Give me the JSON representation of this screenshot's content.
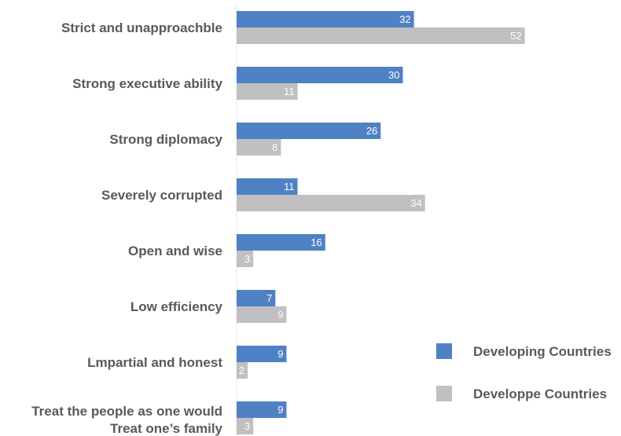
{
  "chart_data": {
    "type": "bar",
    "orientation": "horizontal",
    "categories": [
      [
        "Strict and unapproachble"
      ],
      [
        "Strong executive ability"
      ],
      [
        "Strong diplomacy"
      ],
      [
        "Severely corrupted"
      ],
      [
        "Open and wise"
      ],
      [
        "Low efficiency"
      ],
      [
        "Lmpartial and honest"
      ],
      [
        "Treat the people as one would",
        "Treat one’s family"
      ]
    ],
    "series": [
      {
        "name": "Developing Countries",
        "color": "#4f81c5",
        "values": [
          32,
          30,
          26,
          11,
          16,
          7,
          9,
          9
        ]
      },
      {
        "name": "Developpe Countries",
        "color": "#c0c0c0",
        "values": [
          52,
          11,
          8,
          34,
          3,
          9,
          2,
          3
        ]
      }
    ],
    "legend_position": "right",
    "grid": false
  }
}
